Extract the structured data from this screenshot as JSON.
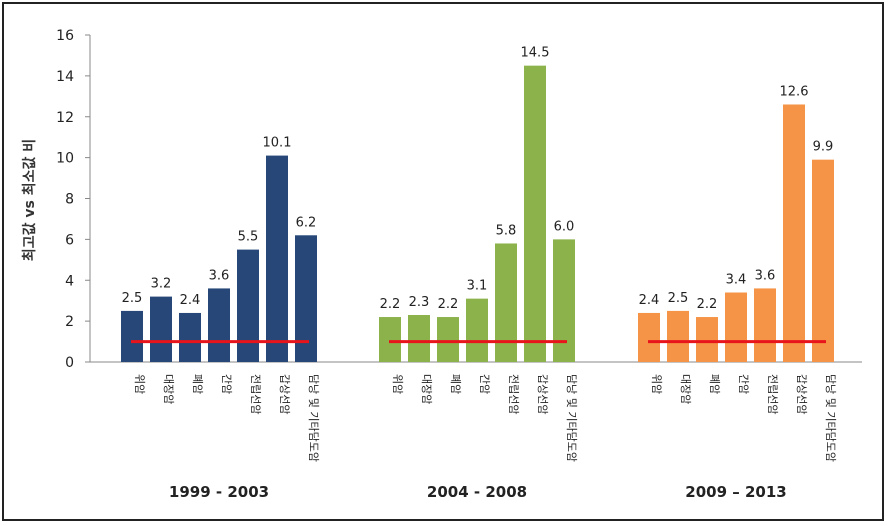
{
  "chart_data": {
    "type": "bar",
    "ylabel": "최고값 vs 최소값 비",
    "ylim": [
      0,
      16
    ],
    "yticks": [
      0,
      2,
      4,
      6,
      8,
      10,
      12,
      14,
      16
    ],
    "reference_line": 1,
    "reference_color": "#e8141b",
    "groups": [
      {
        "label": "1999 - 2003",
        "color": "#264778",
        "categories": [
          "위암",
          "대장암",
          "폐암",
          "간암",
          "전립선암",
          "갑상선암",
          "담낭 및 기타담도암"
        ],
        "values": [
          2.5,
          3.2,
          2.4,
          3.6,
          5.5,
          10.1,
          6.2
        ],
        "value_labels": [
          "2.5",
          "3.2",
          "2.4",
          "3.6",
          "5.5",
          "10.1",
          "6.2"
        ]
      },
      {
        "label": "2004 - 2008",
        "color": "#8cb24b",
        "categories": [
          "위암",
          "대장암",
          "폐암",
          "간암",
          "전립선암",
          "갑상선암",
          "담낭 및 기타담도암"
        ],
        "values": [
          2.2,
          2.3,
          2.2,
          3.1,
          5.8,
          14.5,
          6.0
        ],
        "value_labels": [
          "2.2",
          "2.3",
          "2.2",
          "3.1",
          "5.8",
          "14.5",
          "6.0"
        ]
      },
      {
        "label": "2009 – 2013",
        "color": "#f59446",
        "categories": [
          "위암",
          "대장암",
          "폐암",
          "간암",
          "전립선암",
          "갑상선암",
          "담낭 및 기타담도암"
        ],
        "values": [
          2.4,
          2.5,
          2.2,
          3.4,
          3.6,
          12.6,
          9.9
        ],
        "value_labels": [
          "2.4",
          "2.5",
          "2.2",
          "3.4",
          "3.6",
          "12.6",
          "9.9"
        ]
      }
    ]
  }
}
